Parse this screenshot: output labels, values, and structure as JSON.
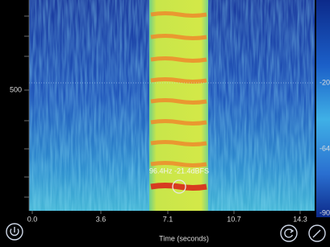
{
  "spectrogram": {
    "y_axis_label": "500",
    "x_ticks": [
      "0.0",
      "3.6",
      "7.1",
      "10.7",
      "14.3"
    ],
    "x_axis_title": "Time (seconds)",
    "cursor_readout": "96.4Hz -21.4dBFS",
    "colorbar_labels": [
      "-20",
      "-64",
      "-90"
    ]
  }
}
